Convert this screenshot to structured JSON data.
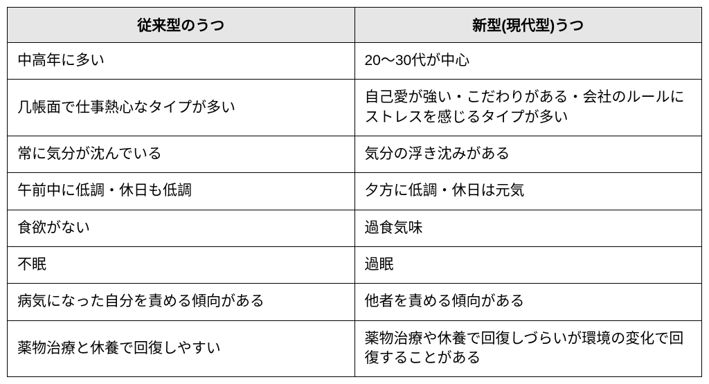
{
  "table": {
    "type": "table",
    "background_color": "#ffffff",
    "header_background_color": "#e6e6e6",
    "border_color": "#000000",
    "border_width": 1.5,
    "text_color": "#000000",
    "header_fontsize": 21,
    "cell_fontsize": 21,
    "font_weight_header": "bold",
    "column_widths_pct": [
      50,
      50
    ],
    "columns": [
      {
        "label": "従来型のうつ",
        "align": "center"
      },
      {
        "label": "新型(現代型)うつ",
        "align": "center"
      }
    ],
    "rows": [
      [
        "中高年に多い",
        "20～30代が中心"
      ],
      [
        "几帳面で仕事熱心なタイプが多い",
        "自己愛が強い・こだわりがある・会社のルールにストレスを感じるタイプが多い"
      ],
      [
        "常に気分が沈んでいる",
        "気分の浮き沈みがある"
      ],
      [
        "午前中に低調・休日も低調",
        "夕方に低調・休日は元気"
      ],
      [
        "食欲がない",
        "過食気味"
      ],
      [
        "不眠",
        "過眠"
      ],
      [
        "病気になった自分を責める傾向がある",
        "他者を責める傾向がある"
      ],
      [
        "薬物治療と休養で回復しやすい",
        "薬物治療や休養で回復しづらいが環境の変化で回復することがある"
      ]
    ]
  }
}
